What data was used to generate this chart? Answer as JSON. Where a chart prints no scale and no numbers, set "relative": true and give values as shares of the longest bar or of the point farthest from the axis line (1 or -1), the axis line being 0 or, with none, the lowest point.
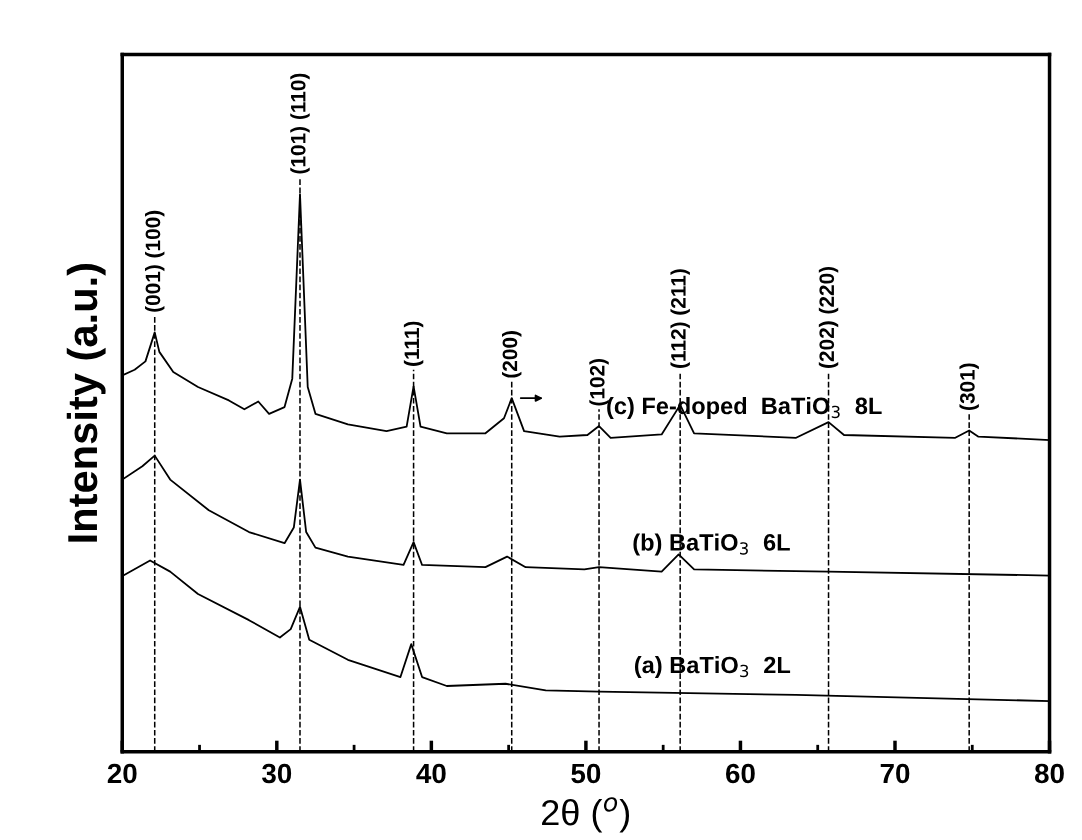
{
  "chart_data": {
    "type": "line",
    "relative": true,
    "xlabel": "2θ ($^{o}$)",
    "ylabel": "Intensity (a.u.)",
    "xlim": [
      20,
      80
    ],
    "xticks": [
      20,
      30,
      40,
      50,
      60,
      70,
      80
    ],
    "grid": false,
    "legend": false,
    "marker": "none",
    "line_style": "solid",
    "series": [
      {
        "name": "(c) Fe-doped  BaTiO$_{3}$  8L",
        "color": "#000000",
        "x": [
          20,
          20.8,
          21.5,
          22.1,
          22.4,
          23.3,
          24.9,
          26.9,
          27.9,
          28.8,
          29.5,
          30.5,
          31.0,
          31.5,
          32.0,
          32.5,
          34.6,
          37.1,
          38.4,
          38.85,
          39.3,
          41.0,
          43.5,
          44.7,
          45.2,
          46.0,
          48.3,
          50.1,
          50.85,
          51.6,
          54.9,
          56.1,
          57.0,
          63.6,
          65.7,
          66.7,
          73.9,
          74.8,
          75.4,
          80
        ],
        "values": [
          0.675,
          0.685,
          0.7,
          0.752,
          0.717,
          0.681,
          0.654,
          0.63,
          0.614,
          0.628,
          0.606,
          0.618,
          0.669,
          1.0,
          0.654,
          0.606,
          0.587,
          0.575,
          0.583,
          0.655,
          0.583,
          0.571,
          0.571,
          0.598,
          0.634,
          0.575,
          0.565,
          0.568,
          0.584,
          0.563,
          0.569,
          0.622,
          0.571,
          0.563,
          0.591,
          0.568,
          0.563,
          0.576,
          0.565,
          0.559
        ]
      },
      {
        "name": "(b) BaTiO$_{3}$  6L",
        "color": "#000000",
        "x": [
          20,
          21.3,
          22.1,
          23.1,
          25.6,
          28.2,
          30.5,
          31.1,
          31.5,
          31.9,
          32.5,
          34.6,
          38.2,
          38.85,
          39.4,
          43.5,
          44.9,
          46.1,
          49.9,
          50.85,
          54.9,
          56.0,
          57.0,
          65.7,
          80
        ],
        "values": [
          0.488,
          0.512,
          0.531,
          0.488,
          0.433,
          0.394,
          0.374,
          0.402,
          0.488,
          0.394,
          0.366,
          0.35,
          0.335,
          0.376,
          0.335,
          0.331,
          0.35,
          0.331,
          0.327,
          0.331,
          0.323,
          0.354,
          0.327,
          0.323,
          0.316
        ]
      },
      {
        "name": "(a) BaTiO$_{3}$  2L",
        "color": "#000000",
        "x": [
          20,
          21.8,
          23.1,
          24.9,
          28.2,
          30.2,
          30.9,
          31.5,
          32.1,
          34.6,
          38.0,
          38.7,
          39.4,
          41.0,
          44.8,
          47.4,
          50.85,
          63.6,
          80
        ],
        "values": [
          0.315,
          0.343,
          0.323,
          0.283,
          0.236,
          0.205,
          0.22,
          0.26,
          0.201,
          0.165,
          0.134,
          0.193,
          0.134,
          0.118,
          0.122,
          0.11,
          0.108,
          0.102,
          0.091
        ]
      }
    ],
    "ref_lines": [
      {
        "axis": "x",
        "value": 22.1,
        "line_style": "dashed"
      },
      {
        "axis": "x",
        "value": 31.5,
        "line_style": "dashed"
      },
      {
        "axis": "x",
        "value": 38.85,
        "line_style": "dashed"
      },
      {
        "axis": "x",
        "value": 45.2,
        "line_style": "dashed"
      },
      {
        "axis": "x",
        "value": 50.85,
        "line_style": "dashed"
      },
      {
        "axis": "x",
        "value": 56.1,
        "line_style": "dashed"
      },
      {
        "axis": "x",
        "value": 65.7,
        "line_style": "dashed"
      },
      {
        "axis": "x",
        "value": 74.8,
        "line_style": "dashed"
      }
    ],
    "annotations": [
      {
        "text": "(001) (100)",
        "x": 22.1,
        "y": 0.752
      },
      {
        "text": "(101) (110)",
        "x": 31.5,
        "y": 1.0
      },
      {
        "text": "(111)",
        "x": 38.85,
        "y": 0.655
      },
      {
        "text": "(200)",
        "x": 45.2,
        "y": 0.634
      },
      {
        "text": "(102)",
        "x": 50.85,
        "y": 0.584
      },
      {
        "text": "(112) (211)",
        "x": 56.1,
        "y": 0.622
      },
      {
        "text": "(202) (220)",
        "x": 65.7,
        "y": 0.591
      },
      {
        "text": "(301)",
        "x": 74.8,
        "y": 0.576
      }
    ]
  }
}
